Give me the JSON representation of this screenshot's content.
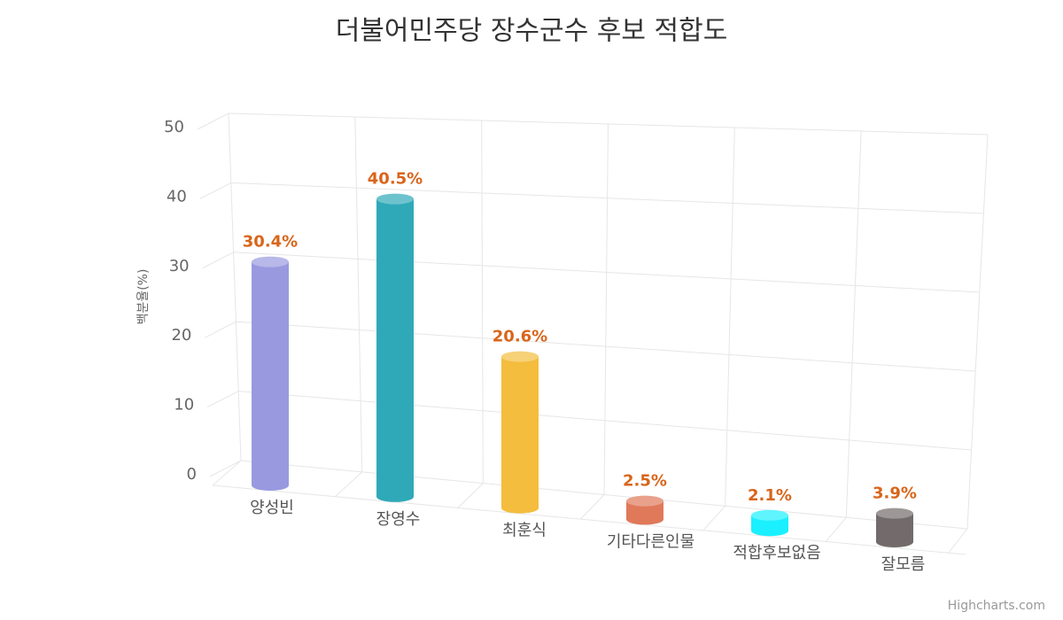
{
  "chart_data": {
    "type": "cylinder",
    "title": "더불어민주당 장수군수 후보 적합도",
    "y_axis_label": "백분율(%)",
    "categories": [
      "양성빈",
      "장영수",
      "최훈식",
      "기타다른인물",
      "적합후보없음",
      "잘모름"
    ],
    "values": [
      30.4,
      40.5,
      20.6,
      2.5,
      2.1,
      3.9
    ],
    "value_labels": [
      "30.4%",
      "40.5%",
      "20.6%",
      "2.5%",
      "2.1%",
      "3.9%"
    ],
    "colors": [
      "#9999e0",
      "#2fa9b8",
      "#f4bd3e",
      "#e0795a",
      "#1af0ff",
      "#736b6b"
    ],
    "ylim": [
      0,
      50
    ],
    "yticks": [
      0,
      10,
      20,
      30,
      40,
      50
    ],
    "grid": true,
    "credit": "Highcharts.com"
  }
}
